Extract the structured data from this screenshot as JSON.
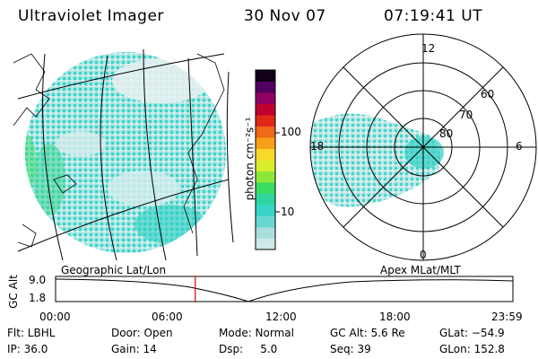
{
  "header": {
    "instrument": "Ultraviolet Imager",
    "date": "30 Nov 07",
    "time": "07:19:41 UT"
  },
  "geo_panel": {
    "label": "Geographic Lat/Lon"
  },
  "polar_panel": {
    "label": "Apex MLat/MLT",
    "mlt_labels": [
      "12",
      "18",
      "6",
      "0"
    ],
    "lat_labels": [
      "60",
      "70",
      "80"
    ]
  },
  "colorbar": {
    "unit_label": "photon cm⁻²s⁻¹",
    "tick_labels": [
      "100",
      "10"
    ],
    "colors": [
      "#cfe8e8",
      "#aadedd",
      "#66d8d0",
      "#39d4c8",
      "#2fd6a0",
      "#38dc60",
      "#8ae838",
      "#d8ee2a",
      "#f8d828",
      "#f8a018",
      "#f06818",
      "#e02818",
      "#c00030",
      "#900060",
      "#500060",
      "#100018"
    ]
  },
  "altitude_track": {
    "ylabel": "GC Alt",
    "y_ticks": [
      "9.0",
      "1.8"
    ],
    "x_ticks": [
      "00:00",
      "06:00",
      "12:00",
      "18:00",
      "23:59"
    ],
    "current_time_hours": 7.33,
    "marker_color": "#e00000"
  },
  "info": {
    "flt": "Flt: LBHL",
    "ip": "IP: 36.0",
    "door": "Door: Open",
    "gain": "Gain: 14",
    "mode": "Mode: Normal",
    "dsp": "Dsp:     5.0",
    "gcalt": "GC Alt: 5.6 Re",
    "seq": "Seq: 39",
    "glat": "GLat: −54.9",
    "glon": "GLon: 152.8"
  }
}
